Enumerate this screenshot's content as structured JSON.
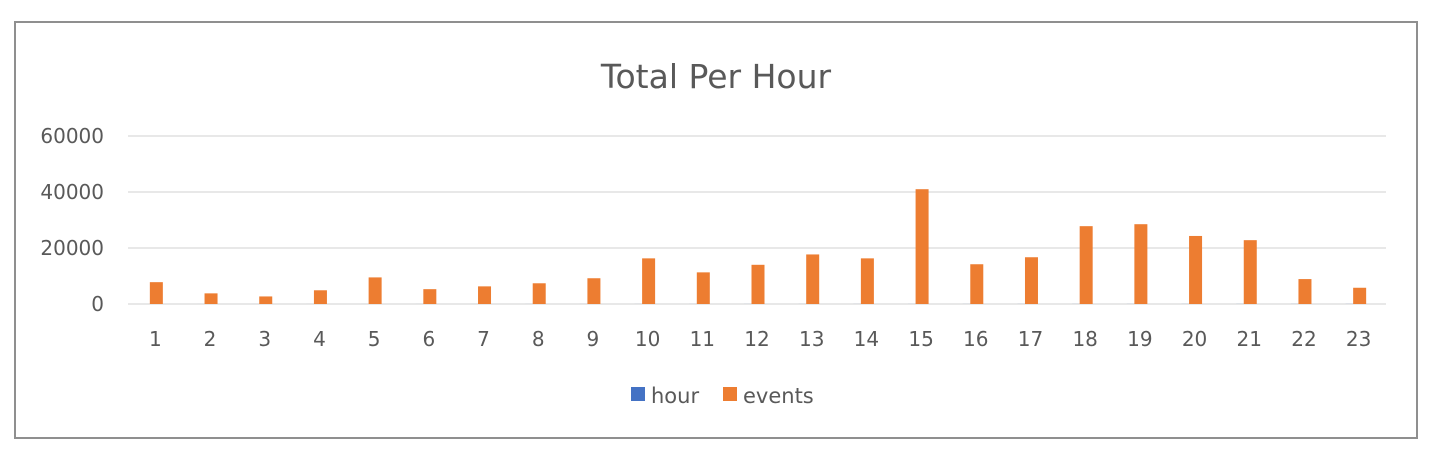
{
  "chart_data": {
    "type": "bar",
    "title": "Total Per Hour",
    "categories": [
      "1",
      "2",
      "3",
      "4",
      "5",
      "6",
      "7",
      "8",
      "9",
      "10",
      "11",
      "12",
      "13",
      "14",
      "15",
      "16",
      "17",
      "18",
      "19",
      "20",
      "21",
      "22",
      "23"
    ],
    "series": [
      {
        "name": "hour",
        "color": "#4472c4",
        "values": [
          1,
          2,
          3,
          4,
          5,
          6,
          7,
          8,
          9,
          10,
          11,
          12,
          13,
          14,
          15,
          16,
          17,
          18,
          19,
          20,
          21,
          22,
          23
        ]
      },
      {
        "name": "events",
        "color": "#ed7d31",
        "values": [
          7800,
          3800,
          2700,
          4900,
          9500,
          5300,
          6300,
          7400,
          9200,
          16300,
          11300,
          14000,
          17700,
          16300,
          41000,
          14200,
          16700,
          27800,
          28500,
          24300,
          22800,
          8900,
          5800
        ]
      }
    ],
    "yticks": [
      0,
      20000,
      40000,
      60000
    ],
    "ylim": [
      0,
      60000
    ],
    "grid": true,
    "legend_position": "bottom",
    "gridline_color": "#d9d9d9",
    "text_color": "#595959"
  }
}
